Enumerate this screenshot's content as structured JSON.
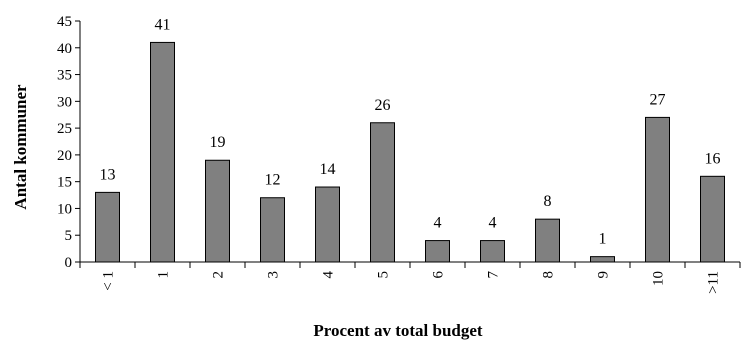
{
  "chart_data": {
    "type": "bar",
    "title": "",
    "xlabel": "Procent av total budget",
    "ylabel": "Antal kommuner",
    "categories": [
      "< 1",
      "1",
      "2",
      "3",
      "4",
      "5",
      "6",
      "7",
      "8",
      "9",
      "10",
      ">11"
    ],
    "values": [
      13,
      41,
      19,
      12,
      14,
      26,
      4,
      4,
      8,
      1,
      27,
      16
    ],
    "ylim": [
      0,
      45
    ],
    "yticks": [
      0,
      5,
      10,
      15,
      20,
      25,
      30,
      35,
      40,
      45
    ],
    "grid": false,
    "legend": "none",
    "colors": {
      "bar_fill": "#808080",
      "bar_stroke": "#000000",
      "axis": "#000000"
    }
  }
}
